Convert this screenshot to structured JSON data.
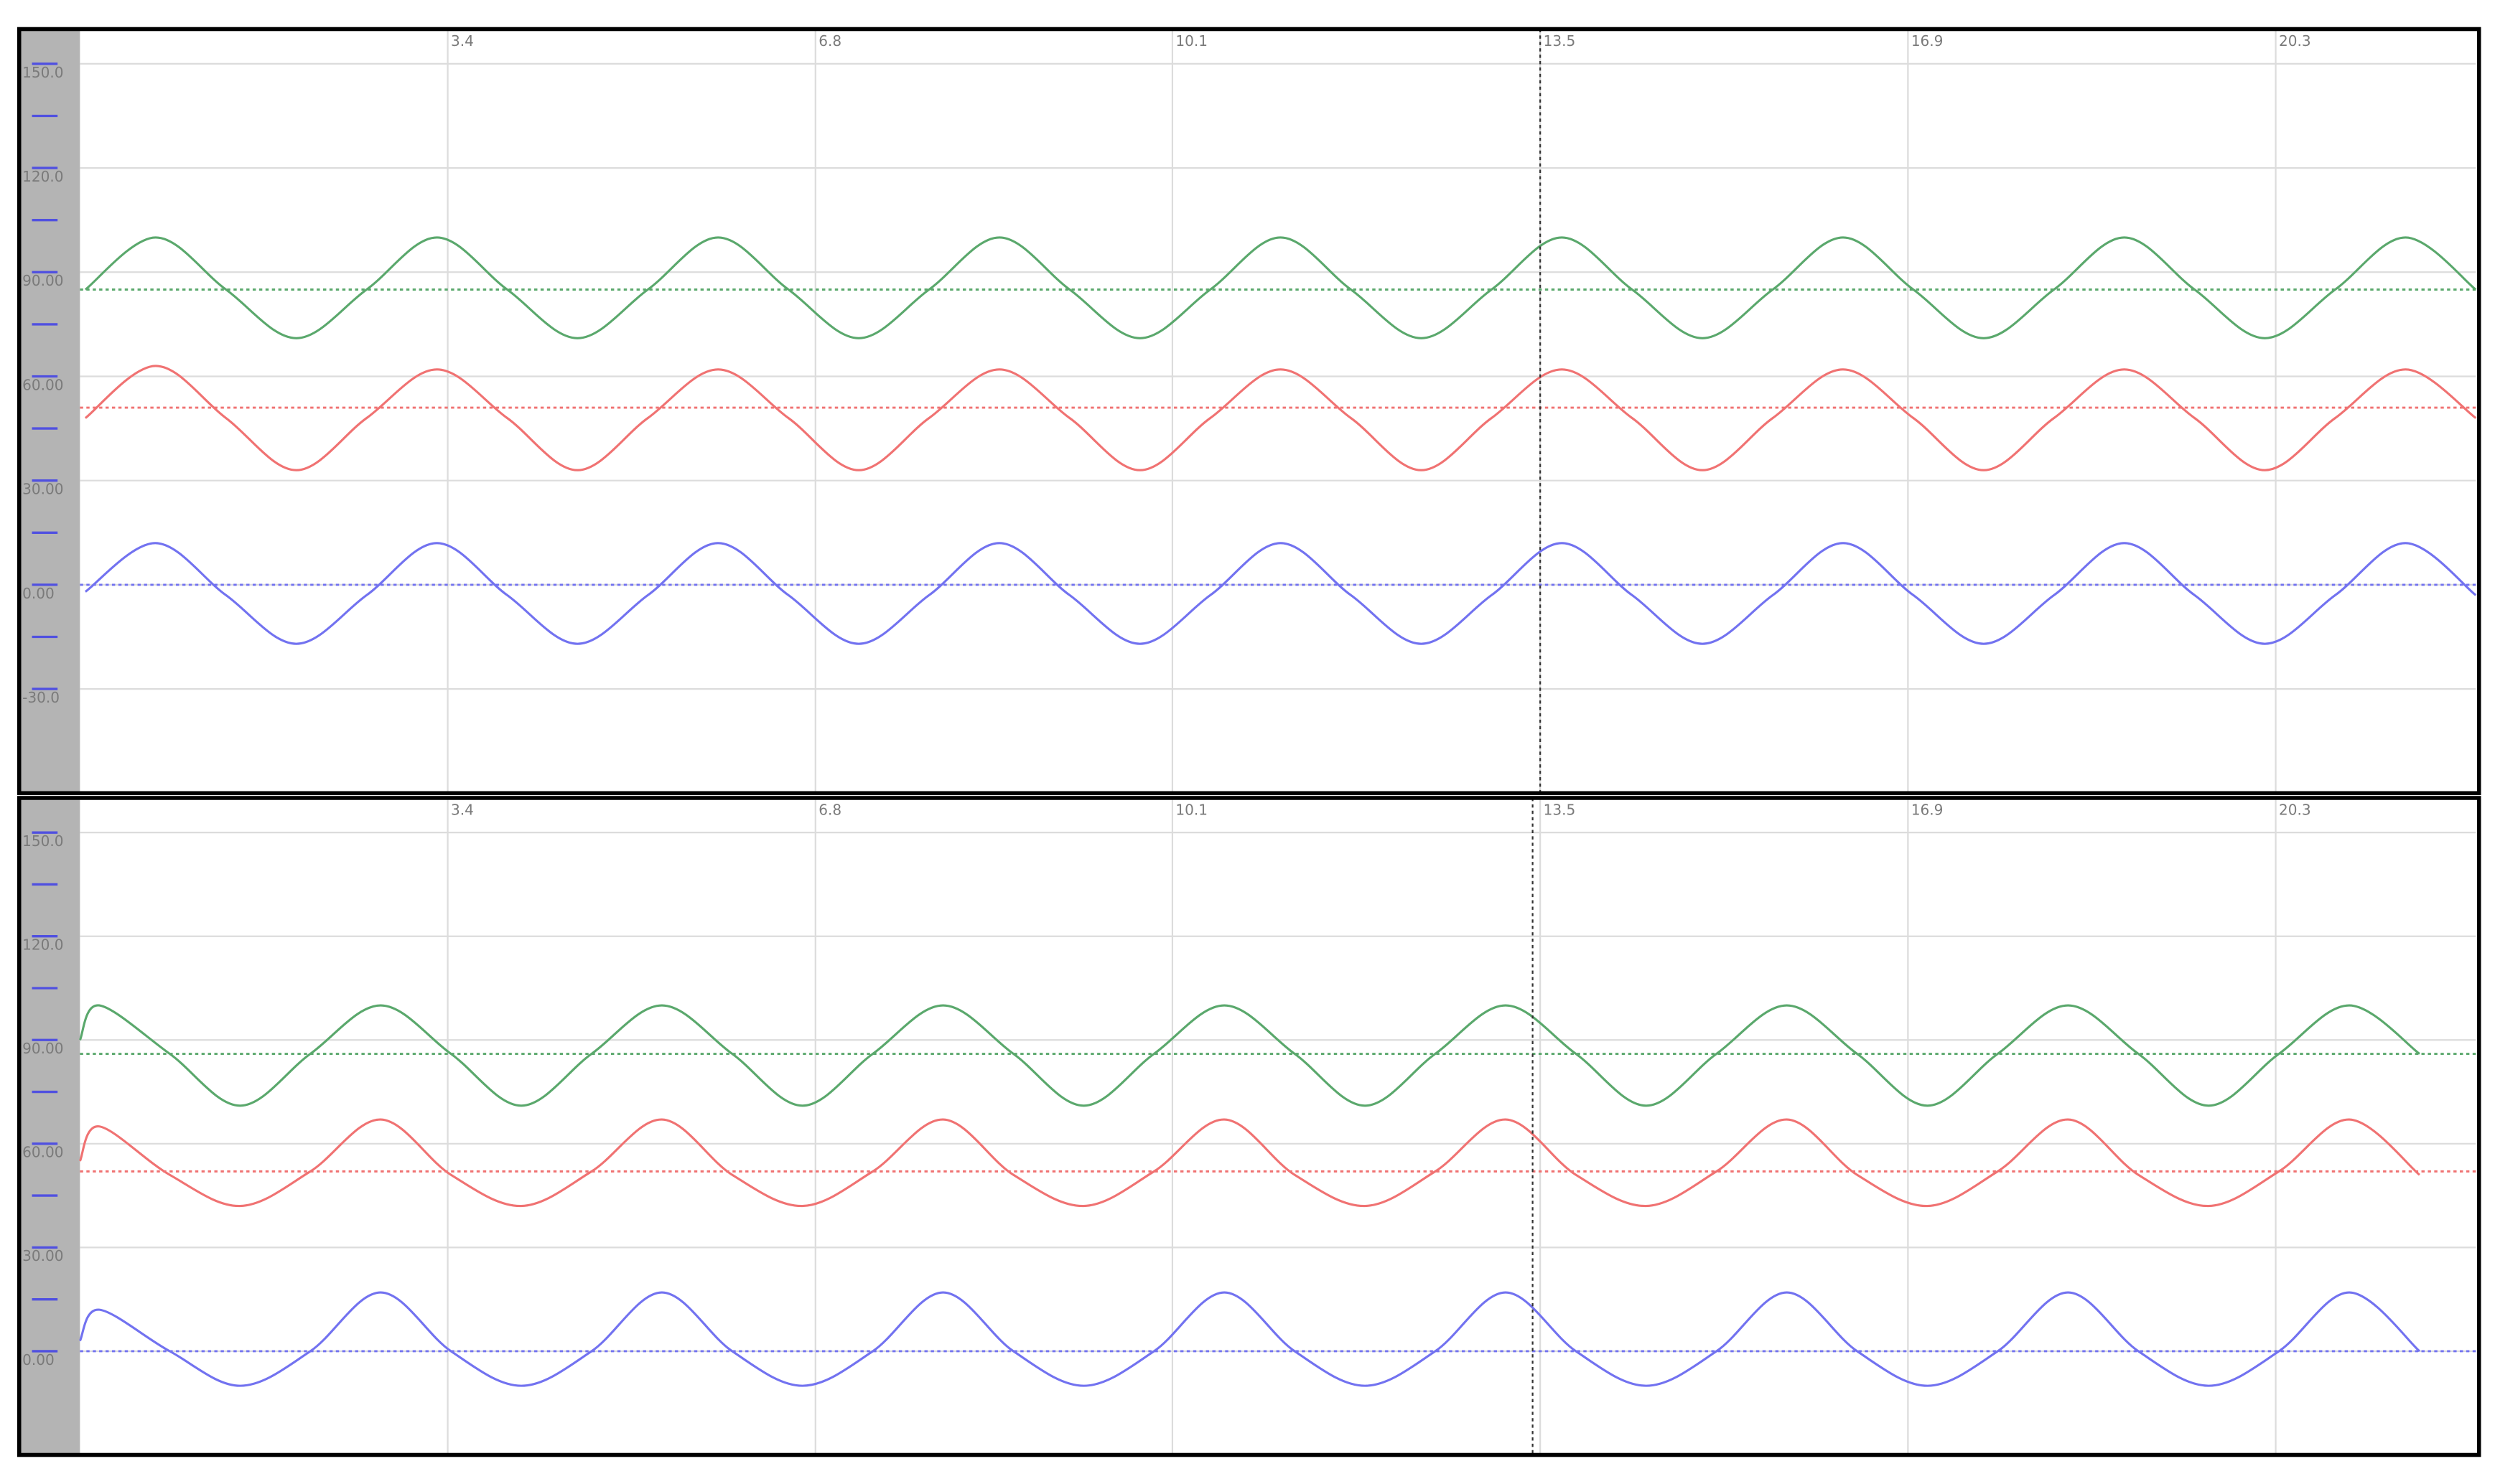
{
  "chart_data": [
    {
      "type": "line",
      "x": [
        0.05,
        0.7,
        1.35,
        2,
        2.65,
        3.3,
        3.95,
        4.6,
        5.25,
        5.9,
        6.55,
        7.2,
        7.85,
        8.5,
        9.15,
        9.8,
        10.45,
        11.1,
        11.75,
        12.4,
        13.05,
        13.7,
        14.35,
        15,
        15.65,
        16.3,
        16.95,
        17.6,
        18.25,
        18.9,
        19.55,
        20.2,
        20.85,
        21.5,
        22.15
      ],
      "xlim": [
        0,
        22.15
      ],
      "xticks": [
        3.4,
        6.8,
        10.1,
        13.5,
        16.9,
        20.3
      ],
      "ylim": [
        -60,
        160
      ],
      "yticks": [
        {
          "value": 150,
          "label": "150.0"
        },
        {
          "value": 120,
          "label": "120.0"
        },
        {
          "value": 90,
          "label": "90.00"
        },
        {
          "value": 60,
          "label": "60.00"
        },
        {
          "value": 30,
          "label": "30.00"
        },
        {
          "value": 0,
          "label": "0.00"
        },
        {
          "value": -30,
          "label": "-30.0"
        }
      ],
      "grid": true,
      "cursor": 13.5,
      "series": [
        {
          "color": "#5aa86c",
          "reference": 85,
          "values": [
            85,
            100,
            85,
            71,
            85,
            100,
            85,
            71,
            85,
            100,
            85,
            71,
            85,
            100,
            85,
            71,
            85,
            100,
            85,
            71,
            85,
            100,
            85,
            71,
            85,
            100,
            85,
            71,
            85,
            100,
            85,
            71,
            85,
            100,
            85
          ]
        },
        {
          "color": "#f07272",
          "reference": 51,
          "values": [
            48,
            63,
            48,
            33,
            48,
            62,
            48,
            33,
            48,
            62,
            48,
            33,
            48,
            62,
            48,
            33,
            48,
            62,
            48,
            33,
            48,
            62,
            48,
            33,
            48,
            62,
            48,
            33,
            48,
            62,
            48,
            33,
            48,
            62,
            48
          ]
        },
        {
          "color": "#7272f0",
          "reference": 0,
          "values": [
            -2,
            12,
            -3,
            -17,
            -3,
            12,
            -3,
            -17,
            -3,
            12,
            -3,
            -17,
            -3,
            12,
            -3,
            -17,
            -3,
            12,
            -3,
            -17,
            -3,
            12,
            -3,
            -17,
            -3,
            12,
            -3,
            -17,
            -3,
            12,
            -3,
            -17,
            -3,
            12,
            -3
          ]
        }
      ]
    },
    {
      "type": "line",
      "x": [
        0,
        0.18,
        0.83,
        1.48,
        2.13,
        2.78,
        3.43,
        4.08,
        4.73,
        5.38,
        6.03,
        6.68,
        7.33,
        7.98,
        8.63,
        9.28,
        9.93,
        10.58,
        11.23,
        11.88,
        12.53,
        13.18,
        13.83,
        14.48,
        15.13,
        15.78,
        16.43,
        17.08,
        17.73,
        18.38,
        19.03,
        19.68,
        20.33,
        20.98,
        21.63
      ],
      "xlim": [
        0,
        22.15
      ],
      "xticks": [
        3.4,
        6.8,
        10.1,
        13.5,
        16.9,
        20.3
      ],
      "ylim": [
        -30,
        160
      ],
      "yticks": [
        {
          "value": 150,
          "label": "150.0"
        },
        {
          "value": 120,
          "label": "120.0"
        },
        {
          "value": 90,
          "label": "90.00"
        },
        {
          "value": 60,
          "label": "60.00"
        },
        {
          "value": 30,
          "label": "30.00"
        },
        {
          "value": 0,
          "label": "0.00"
        }
      ],
      "grid": true,
      "cursor": 13.43,
      "series": [
        {
          "color": "#5aa86c",
          "reference": 86,
          "values": [
            90,
            100,
            86,
            71,
            86,
            100,
            86,
            71,
            86,
            100,
            86,
            71,
            86,
            100,
            86,
            71,
            86,
            100,
            86,
            71,
            86,
            100,
            86,
            71,
            86,
            100,
            86,
            71,
            86,
            100,
            86,
            71,
            86,
            100,
            86
          ]
        },
        {
          "color": "#f07272",
          "reference": 52,
          "values": [
            55,
            65,
            51,
            42,
            52,
            67,
            51,
            42,
            52,
            67,
            51,
            42,
            52,
            67,
            51,
            42,
            52,
            67,
            51,
            42,
            52,
            67,
            51,
            42,
            52,
            67,
            51,
            42,
            52,
            67,
            51,
            42,
            52,
            67,
            51
          ]
        },
        {
          "color": "#7272f0",
          "reference": 0,
          "values": [
            3,
            12,
            0,
            -10,
            0,
            17,
            0,
            -10,
            0,
            17,
            0,
            -10,
            0,
            17,
            0,
            -10,
            0,
            17,
            0,
            -10,
            0,
            17,
            0,
            -10,
            0,
            17,
            0,
            -10,
            0,
            17,
            0,
            -10,
            0,
            17,
            0
          ]
        }
      ]
    }
  ]
}
